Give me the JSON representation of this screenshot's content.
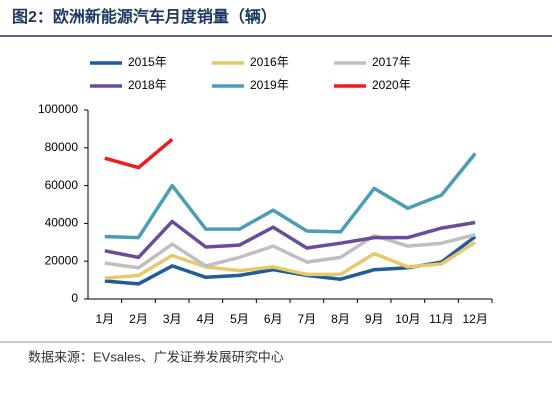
{
  "chart_data": {
    "type": "line",
    "title": "图2：欧洲新能源汽车月度销量（辆）",
    "categories": [
      "1月",
      "2月",
      "3月",
      "4月",
      "5月",
      "6月",
      "7月",
      "8月",
      "9月",
      "10月",
      "11月",
      "12月"
    ],
    "series": [
      {
        "name": "2015年",
        "color": "#1f5c99",
        "values": [
          9500,
          8000,
          17500,
          11500,
          12500,
          15500,
          12500,
          10500,
          15500,
          16500,
          19500,
          33000
        ]
      },
      {
        "name": "2016年",
        "color": "#e6c96b",
        "values": [
          11000,
          12500,
          23000,
          17000,
          15000,
          17000,
          13000,
          13000,
          24000,
          17000,
          18500,
          30000
        ]
      },
      {
        "name": "2017年",
        "color": "#bfbfbf",
        "values": [
          19000,
          16500,
          29000,
          17500,
          22000,
          28000,
          19500,
          22000,
          33500,
          28000,
          29500,
          34000
        ]
      },
      {
        "name": "2018年",
        "color": "#6b4c9a",
        "values": [
          25500,
          22000,
          41000,
          27500,
          28500,
          38000,
          27000,
          29500,
          32500,
          32500,
          37500,
          40500
        ]
      },
      {
        "name": "2019年",
        "color": "#4a9db5",
        "values": [
          33000,
          32500,
          60000,
          37000,
          37000,
          47000,
          36000,
          35500,
          58500,
          48000,
          55000,
          77000
        ]
      },
      {
        "name": "2020年",
        "color": "#ee1c1c",
        "values": [
          74500,
          69500,
          84500,
          null,
          null,
          null,
          null,
          null,
          null,
          null,
          null,
          null
        ]
      }
    ],
    "ylim": [
      0,
      100000
    ],
    "yticks": [
      0,
      20000,
      40000,
      60000,
      80000,
      100000
    ],
    "source": "数据来源：EVsales、广发证券发展研究中心"
  }
}
